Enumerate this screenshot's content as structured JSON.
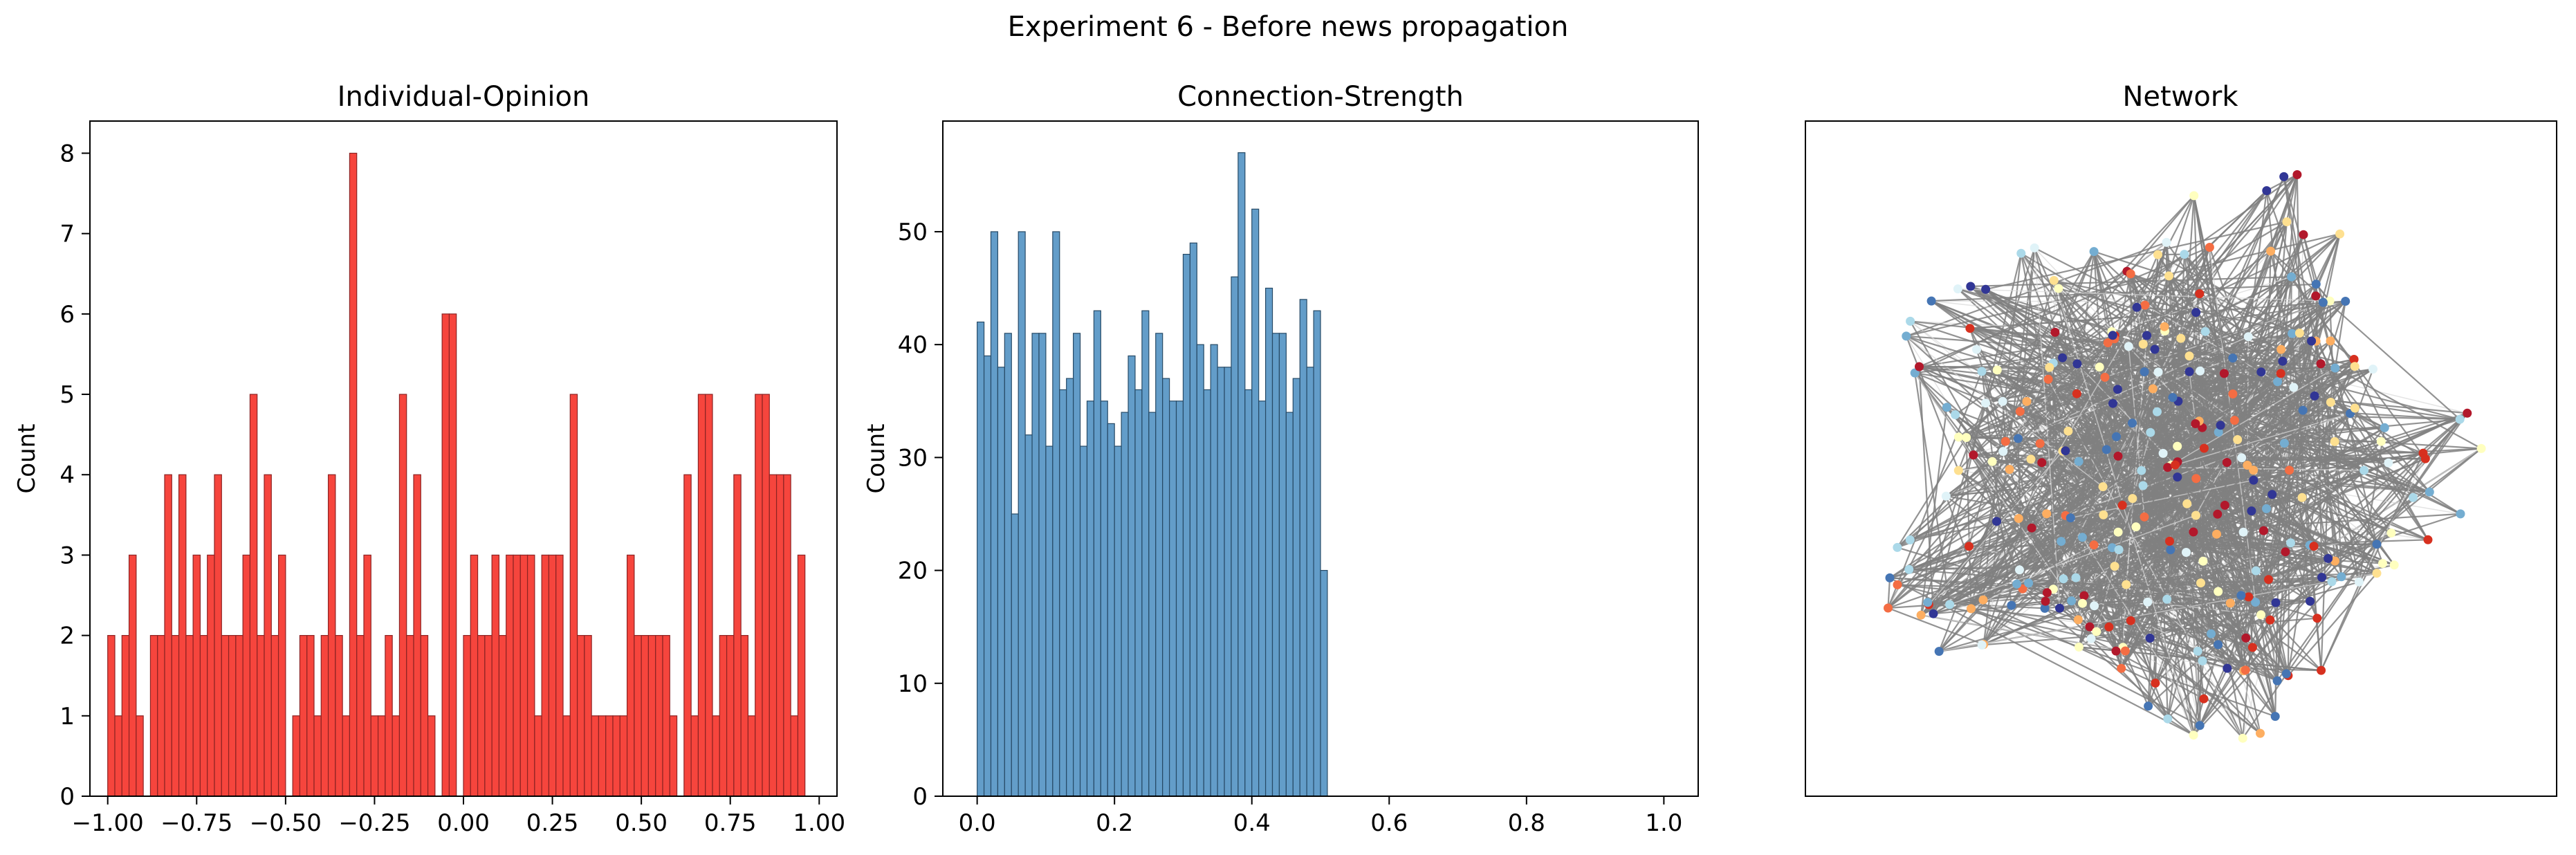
{
  "suptitle": "Experiment 6 - Before news propagation",
  "colors": {
    "opinion_bar": "#f53b33",
    "opinion_edge": "#8c2323",
    "strength_bar": "#5b98c6",
    "strength_edge": "#274a66",
    "network_edge": "#808080",
    "node_palette": [
      "#b2182b",
      "#d7301f",
      "#f46d43",
      "#fdae61",
      "#fee090",
      "#ffffbf",
      "#e0f3f8",
      "#abd9e9",
      "#74add1",
      "#4575b4",
      "#313695"
    ]
  },
  "chart_data": [
    {
      "type": "bar",
      "name": "histogram-opinion",
      "title": "Individual-Opinion",
      "xlabel": "",
      "ylabel": "Count",
      "xlim": [
        -1.05,
        1.05
      ],
      "ylim": [
        0,
        8.4
      ],
      "xticks": [
        -1.0,
        -0.75,
        -0.5,
        -0.25,
        0.0,
        0.25,
        0.5,
        0.75,
        1.0
      ],
      "xtick_labels": [
        "−1.00",
        "−0.75",
        "−0.50",
        "−0.25",
        "0.00",
        "0.25",
        "0.50",
        "0.75",
        "1.00"
      ],
      "yticks": [
        0,
        1,
        2,
        3,
        4,
        5,
        6,
        7,
        8
      ],
      "ytick_labels": [
        "0",
        "1",
        "2",
        "3",
        "4",
        "5",
        "6",
        "7",
        "8"
      ],
      "bin_start": -1.0,
      "bin_width": 0.02,
      "values": [
        2,
        1,
        2,
        3,
        1,
        0,
        2,
        2,
        4,
        2,
        4,
        2,
        3,
        2,
        3,
        4,
        2,
        2,
        2,
        3,
        5,
        2,
        4,
        2,
        3,
        0,
        1,
        2,
        2,
        1,
        2,
        4,
        2,
        1,
        8,
        2,
        3,
        1,
        1,
        2,
        1,
        5,
        2,
        4,
        2,
        1,
        0,
        6,
        6,
        0,
        2,
        3,
        2,
        2,
        3,
        2,
        3,
        3,
        3,
        3,
        1,
        3,
        3,
        3,
        1,
        5,
        2,
        2,
        1,
        1,
        1,
        1,
        1,
        3,
        2,
        2,
        2,
        2,
        2,
        1,
        0,
        4,
        1,
        5,
        5,
        1,
        2,
        2,
        4,
        2,
        1,
        5,
        5,
        4,
        4,
        4,
        1,
        3,
        0,
        0
      ]
    },
    {
      "type": "bar",
      "name": "histogram-strength",
      "title": "Connection-Strength",
      "xlabel": "",
      "ylabel": "Count",
      "xlim": [
        -0.05,
        1.05
      ],
      "ylim": [
        0,
        59.8
      ],
      "xticks": [
        0.0,
        0.2,
        0.4,
        0.6,
        0.8,
        1.0
      ],
      "xtick_labels": [
        "0.0",
        "0.2",
        "0.4",
        "0.6",
        "0.8",
        "1.0"
      ],
      "yticks": [
        0,
        10,
        20,
        30,
        40,
        50
      ],
      "ytick_labels": [
        "0",
        "10",
        "20",
        "30",
        "40",
        "50"
      ],
      "bin_start": 0.0,
      "bin_width": 0.01,
      "values": [
        42,
        39,
        50,
        38,
        41,
        25,
        50,
        32,
        41,
        41,
        31,
        50,
        36,
        37,
        41,
        31,
        35,
        43,
        35,
        33,
        31,
        34,
        39,
        36,
        43,
        34,
        41,
        37,
        35,
        35,
        48,
        49,
        40,
        36,
        40,
        38,
        38,
        46,
        57,
        36,
        52,
        35,
        45,
        41,
        41,
        34,
        37,
        44,
        38,
        43,
        20
      ]
    }
  ],
  "network": {
    "title": "Network",
    "node_count": 300
  }
}
